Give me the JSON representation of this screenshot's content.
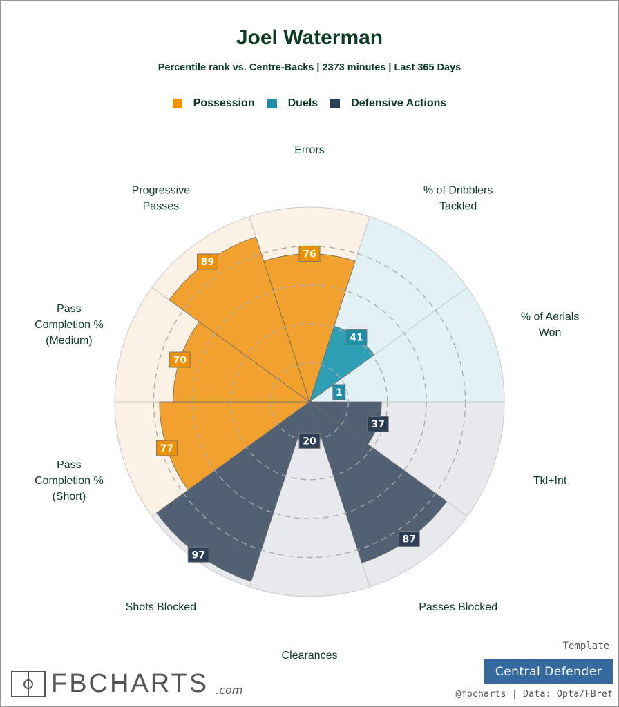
{
  "header": {
    "title": "Joel Waterman",
    "subtitle": "Percentile rank vs. Centre-Backs | 2373 minutes | Last 365 Days"
  },
  "legend": [
    {
      "label": "Possession",
      "color": "#f29100"
    },
    {
      "label": "Duels",
      "color": "#1b8fa6"
    },
    {
      "label": "Defensive Actions",
      "color": "#2c3e55"
    }
  ],
  "chart_data": {
    "type": "polar-bar",
    "title": "Joel Waterman",
    "range": [
      0,
      100
    ],
    "gridlines": [
      20,
      40,
      60,
      80
    ],
    "categories": [
      {
        "label": [
          "Errors"
        ],
        "value": 76,
        "group": "Possession"
      },
      {
        "label": [
          "% of Dribblers",
          "Tackled"
        ],
        "value": 41,
        "group": "Duels"
      },
      {
        "label": [
          "% of Aerials",
          "Won"
        ],
        "value": 1,
        "group": "Duels"
      },
      {
        "label": [
          "Tkl+Int"
        ],
        "value": 37,
        "group": "Defensive Actions"
      },
      {
        "label": [
          "Passes Blocked"
        ],
        "value": 87,
        "group": "Defensive Actions"
      },
      {
        "label": [
          "Clearances"
        ],
        "value": 20,
        "group": "Defensive Actions"
      },
      {
        "label": [
          "Shots Blocked"
        ],
        "value": 97,
        "group": "Defensive Actions"
      },
      {
        "label": [
          "Pass",
          "Completion %",
          "(Short)"
        ],
        "value": 77,
        "group": "Possession"
      },
      {
        "label": [
          "Pass",
          "Completion %",
          "(Medium)"
        ],
        "value": 70,
        "group": "Possession"
      },
      {
        "label": [
          "Progressive",
          "Passes"
        ],
        "value": 89,
        "group": "Possession"
      }
    ],
    "group_colors": {
      "Possession": {
        "bar": "#f2a12e",
        "bg": "#fbf1e4",
        "box": "#f29100"
      },
      "Duels": {
        "bar": "#2f9fb5",
        "bg": "#e2f1f6",
        "box": "#1b8fa6"
      },
      "Defensive Actions": {
        "bar": "#526073",
        "bg": "#e8e9ec",
        "box": "#2c3e55"
      }
    }
  },
  "footer": {
    "logo": "FBCHARTS",
    "logo_suffix": ".com",
    "template_label": "Template",
    "template_name": "Central Defender",
    "credit": "@fbcharts | Data: Opta/FBref"
  }
}
